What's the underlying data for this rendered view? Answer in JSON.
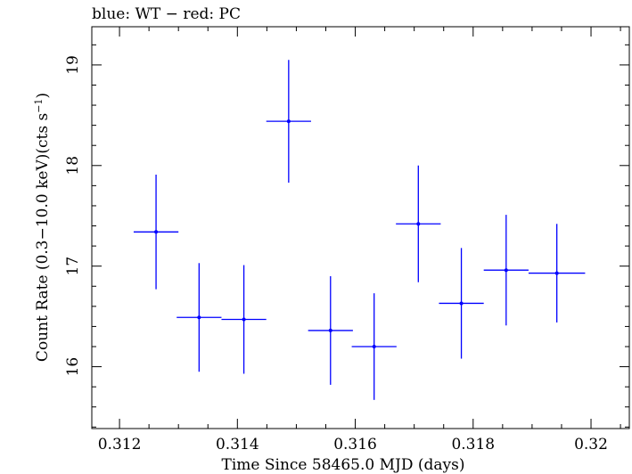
{
  "chart_data": {
    "type": "scatter",
    "title": "blue: WT − red: PC",
    "xlabel": "Time Since 58465.0 MJD (days)",
    "ylabel_main": "Count Rate (0.3−10.0 keV)(cts s",
    "ylabel_sup": "−1",
    "ylabel_close": ")",
    "xlim": [
      0.31153,
      0.32065
    ],
    "ylim": [
      15.385,
      19.38
    ],
    "xticks": [
      0.312,
      0.314,
      0.316,
      0.318,
      0.32
    ],
    "xtick_labels": [
      "0.312",
      "0.314",
      "0.316",
      "0.318",
      "0.32"
    ],
    "yticks": [
      16,
      17,
      18,
      19
    ],
    "ytick_labels": [
      "16",
      "17",
      "18",
      "19"
    ],
    "grid": false,
    "series": [
      {
        "color": "#0000ff",
        "points": [
          {
            "x": 0.31262,
            "xerr": 0.00038,
            "y": 17.34,
            "yerr": 0.57
          },
          {
            "x": 0.31335,
            "xerr": 0.00038,
            "y": 16.49,
            "yerr": 0.54
          },
          {
            "x": 0.31411,
            "xerr": 0.00038,
            "y": 16.47,
            "yerr": 0.54
          },
          {
            "x": 0.31487,
            "xerr": 0.00038,
            "y": 18.44,
            "yerr": 0.61
          },
          {
            "x": 0.31558,
            "xerr": 0.00038,
            "y": 16.36,
            "yerr": 0.54
          },
          {
            "x": 0.31632,
            "xerr": 0.00038,
            "y": 16.2,
            "yerr": 0.53
          },
          {
            "x": 0.31707,
            "xerr": 0.00038,
            "y": 17.42,
            "yerr": 0.58
          },
          {
            "x": 0.3178,
            "xerr": 0.00038,
            "y": 16.63,
            "yerr": 0.55
          },
          {
            "x": 0.31856,
            "xerr": 0.00038,
            "y": 16.96,
            "yerr": 0.55
          },
          {
            "x": 0.31942,
            "xerr": 0.00048,
            "y": 16.93,
            "yerr": 0.49
          }
        ]
      }
    ]
  }
}
